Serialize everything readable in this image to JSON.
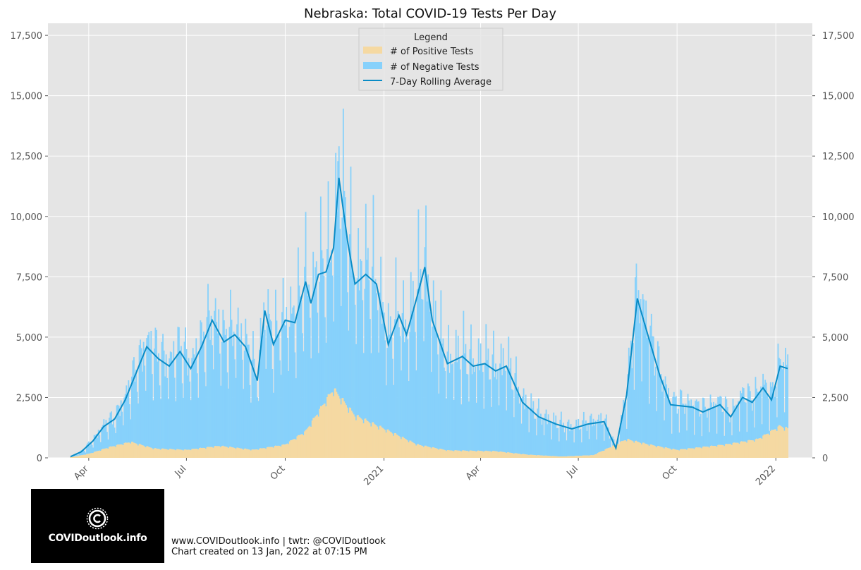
{
  "chart_data": {
    "type": "bar",
    "title": "Nebraska: Total COVID-19 Tests Per Day",
    "x_ticks": [
      "Apr",
      "Jul",
      "Oct",
      "2021",
      "Apr",
      "Jul",
      "Oct",
      "2022"
    ],
    "y_ticks": [
      "0",
      "2,500",
      "5,000",
      "7,500",
      "10,000",
      "12,500",
      "15,000",
      "17,500"
    ],
    "ylim": [
      0,
      18000
    ],
    "xlim": [
      "2020-02-23",
      "2022-02-04"
    ],
    "grid": true,
    "stacked": true,
    "legend": {
      "title": "Legend",
      "position": "top-center",
      "entries": [
        "# of Positive Tests",
        "# of Negative Tests",
        "7-Day Rolling Average"
      ]
    },
    "colors": {
      "positive": "#f5d9a2",
      "negative": "#87d1fb",
      "average": "#0a8cc6",
      "plot_bg": "#e5e5e5"
    },
    "series_keyframes": [
      {
        "name": "7-Day Rolling Average",
        "points": [
          [
            "2020-03-15",
            50
          ],
          [
            "2020-03-25",
            250
          ],
          [
            "2020-04-05",
            700
          ],
          [
            "2020-04-15",
            1300
          ],
          [
            "2020-04-25",
            1600
          ],
          [
            "2020-05-05",
            2400
          ],
          [
            "2020-05-15",
            3500
          ],
          [
            "2020-05-25",
            4600
          ],
          [
            "2020-06-05",
            4100
          ],
          [
            "2020-06-15",
            3800
          ],
          [
            "2020-06-25",
            4400
          ],
          [
            "2020-07-05",
            3700
          ],
          [
            "2020-07-15",
            4600
          ],
          [
            "2020-07-25",
            5700
          ],
          [
            "2020-08-05",
            4800
          ],
          [
            "2020-08-15",
            5100
          ],
          [
            "2020-08-25",
            4600
          ],
          [
            "2020-09-05",
            3200
          ],
          [
            "2020-09-12",
            6100
          ],
          [
            "2020-09-20",
            4700
          ],
          [
            "2020-10-01",
            5700
          ],
          [
            "2020-10-10",
            5600
          ],
          [
            "2020-10-20",
            7300
          ],
          [
            "2020-10-25",
            6400
          ],
          [
            "2020-11-01",
            7600
          ],
          [
            "2020-11-08",
            7700
          ],
          [
            "2020-11-15",
            8700
          ],
          [
            "2020-11-20",
            11600
          ],
          [
            "2020-11-28",
            9000
          ],
          [
            "2020-12-05",
            7200
          ],
          [
            "2020-12-15",
            7600
          ],
          [
            "2020-12-25",
            7200
          ],
          [
            "2021-01-05",
            4700
          ],
          [
            "2021-01-15",
            5900
          ],
          [
            "2021-01-22",
            5100
          ],
          [
            "2021-02-01",
            6700
          ],
          [
            "2021-02-08",
            7900
          ],
          [
            "2021-02-15",
            5700
          ],
          [
            "2021-03-01",
            3900
          ],
          [
            "2021-03-15",
            4200
          ],
          [
            "2021-03-25",
            3800
          ],
          [
            "2021-04-05",
            3900
          ],
          [
            "2021-04-15",
            3600
          ],
          [
            "2021-04-25",
            3800
          ],
          [
            "2021-05-10",
            2300
          ],
          [
            "2021-05-25",
            1700
          ],
          [
            "2021-06-10",
            1400
          ],
          [
            "2021-06-25",
            1200
          ],
          [
            "2021-07-10",
            1400
          ],
          [
            "2021-07-25",
            1500
          ],
          [
            "2021-08-05",
            400
          ],
          [
            "2021-08-15",
            2600
          ],
          [
            "2021-08-25",
            6600
          ],
          [
            "2021-09-05",
            4900
          ],
          [
            "2021-09-15",
            3400
          ],
          [
            "2021-09-25",
            2200
          ],
          [
            "2021-10-15",
            2100
          ],
          [
            "2021-10-25",
            1900
          ],
          [
            "2021-11-10",
            2200
          ],
          [
            "2021-11-20",
            1700
          ],
          [
            "2021-12-01",
            2500
          ],
          [
            "2021-12-10",
            2300
          ],
          [
            "2021-12-20",
            2900
          ],
          [
            "2021-12-28",
            2400
          ],
          [
            "2022-01-05",
            3800
          ],
          [
            "2022-01-12",
            3700
          ]
        ]
      },
      {
        "name": "# of Positive Tests",
        "points": [
          [
            "2020-03-15",
            20
          ],
          [
            "2020-04-01",
            150
          ],
          [
            "2020-04-20",
            400
          ],
          [
            "2020-05-10",
            600
          ],
          [
            "2020-06-01",
            350
          ],
          [
            "2020-07-01",
            300
          ],
          [
            "2020-08-01",
            450
          ],
          [
            "2020-09-01",
            300
          ],
          [
            "2020-10-01",
            500
          ],
          [
            "2020-10-20",
            1000
          ],
          [
            "2020-11-15",
            2600
          ],
          [
            "2020-12-05",
            1600
          ],
          [
            "2021-01-01",
            1100
          ],
          [
            "2021-02-01",
            500
          ],
          [
            "2021-03-01",
            280
          ],
          [
            "2021-04-15",
            250
          ],
          [
            "2021-05-15",
            120
          ],
          [
            "2021-06-15",
            50
          ],
          [
            "2021-07-15",
            100
          ],
          [
            "2021-08-15",
            700
          ],
          [
            "2021-09-05",
            500
          ],
          [
            "2021-10-01",
            300
          ],
          [
            "2021-11-15",
            500
          ],
          [
            "2021-12-15",
            700
          ],
          [
            "2022-01-05",
            1200
          ],
          [
            "2022-01-12",
            1100
          ]
        ]
      }
    ]
  },
  "footer": {
    "line1": "www.COVIDoutlook.info | twtr: @COVIDoutlook",
    "line2": "Chart created on 13 Jan, 2022 at 07:15 PM"
  },
  "logo": {
    "text": "COVIDoutlook.info",
    "icon": "virus-c-icon"
  }
}
